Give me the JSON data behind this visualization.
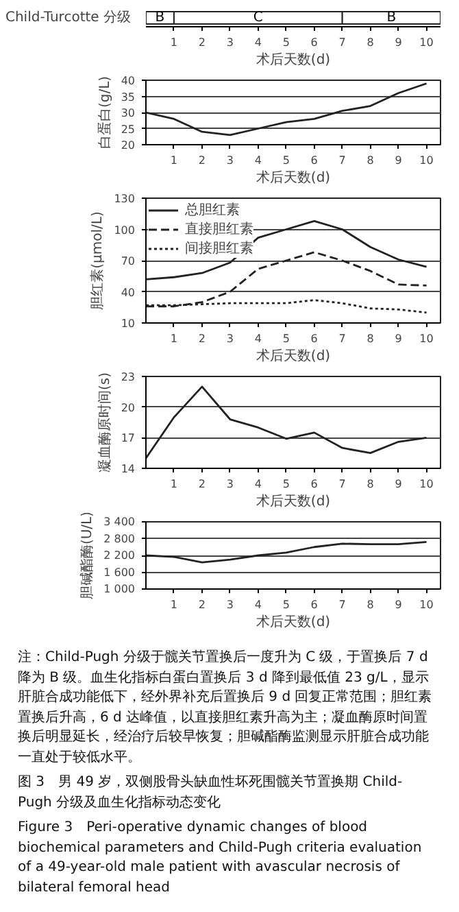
{
  "chart_data": [
    {
      "type": "bar",
      "orientation": "horizontal",
      "stacked": true,
      "categories": [
        "Child-Turcotte 分级"
      ],
      "xlabel": "术后天数(d)",
      "xlim": [
        0,
        10.5
      ],
      "xticks": [
        1,
        2,
        3,
        4,
        5,
        6,
        7,
        8,
        9,
        10
      ],
      "series": [
        {
          "name": "B",
          "color": "#ffffff",
          "values": [
            1
          ]
        },
        {
          "name": "C",
          "color": "#ffffff",
          "values": [
            6
          ]
        },
        {
          "name": "B",
          "color": "#ffffff",
          "values": [
            3.5
          ]
        }
      ]
    },
    {
      "type": "line",
      "ylabel": "白蛋白(g/L)",
      "xlabel": "术后天数(d)",
      "x": [
        0,
        1,
        2,
        3,
        4,
        5,
        6,
        7,
        8,
        9,
        10
      ],
      "xlim": [
        0,
        10.5
      ],
      "xticks": [
        1,
        2,
        3,
        4,
        5,
        6,
        7,
        8,
        9,
        10
      ],
      "ylim": [
        20,
        40
      ],
      "yticks": [
        20,
        25,
        30,
        35,
        40
      ],
      "grid": "y",
      "series": [
        {
          "color": "#222222",
          "line_style": "solid",
          "values": [
            30,
            28,
            24,
            23,
            25,
            27,
            28,
            30.5,
            32,
            36,
            39
          ]
        }
      ]
    },
    {
      "type": "line",
      "ylabel": "胆红素(μmol/L)",
      "xlabel": "术后天数(d)",
      "x": [
        0,
        1,
        2,
        3,
        4,
        5,
        6,
        7,
        8,
        9,
        10
      ],
      "xlim": [
        0,
        10.5
      ],
      "xticks": [
        1,
        2,
        3,
        4,
        5,
        6,
        7,
        8,
        9,
        10
      ],
      "ylim": [
        10,
        130
      ],
      "yticks": [
        10,
        40,
        70,
        100,
        130
      ],
      "grid": "y",
      "legend": "top left",
      "series": [
        {
          "name": "总胆红素",
          "color": "#222222",
          "line_style": "solid",
          "values": [
            52,
            54,
            58,
            68,
            92,
            100,
            108,
            100,
            83,
            71,
            64
          ]
        },
        {
          "name": "直接胆红素",
          "color": "#222222",
          "line_style": "dashed",
          "values": [
            26,
            26,
            30,
            40,
            62,
            70,
            78,
            70,
            60,
            47,
            46
          ]
        },
        {
          "name": "间接胆红素",
          "color": "#222222",
          "line_style": "dotted",
          "values": [
            27,
            27,
            28,
            29,
            29,
            29,
            32,
            29,
            24,
            23,
            20
          ]
        }
      ]
    },
    {
      "type": "line",
      "ylabel": "凝血酶原时间(s)",
      "xlabel": "术后天数(d)",
      "x": [
        0,
        1,
        2,
        3,
        4,
        5,
        6,
        7,
        8,
        9,
        10
      ],
      "xlim": [
        0,
        10.5
      ],
      "xticks": [
        1,
        2,
        3,
        4,
        5,
        6,
        7,
        8,
        9,
        10
      ],
      "ylim": [
        14,
        23
      ],
      "yticks": [
        14,
        17,
        20,
        23
      ],
      "grid": "y",
      "series": [
        {
          "color": "#222222",
          "line_style": "solid",
          "values": [
            15,
            19,
            22,
            18.8,
            18,
            16.9,
            17.5,
            16,
            15.5,
            16.6,
            17
          ]
        }
      ]
    },
    {
      "type": "line",
      "ylabel": "胆碱酯酶(U/L)",
      "xlabel": "术后天数(d)",
      "x": [
        0,
        1,
        2,
        3,
        4,
        5,
        6,
        7,
        8,
        9,
        10
      ],
      "xlim": [
        0,
        10.5
      ],
      "xticks": [
        1,
        2,
        3,
        4,
        5,
        6,
        7,
        8,
        9,
        10
      ],
      "ylim": [
        1000,
        3400
      ],
      "yticks": [
        {
          "value": 1000,
          "label": "1 000"
        },
        {
          "value": 1600,
          "label": "1 600"
        },
        {
          "value": 2200,
          "label": "2 200"
        },
        {
          "value": 2800,
          "label": "2 800"
        },
        {
          "value": 3400,
          "label": "3 400"
        }
      ],
      "grid": "y",
      "series": [
        {
          "color": "#222222",
          "line_style": "solid",
          "values": [
            2200,
            2150,
            1950,
            2050,
            2200,
            2300,
            2500,
            2620,
            2600,
            2600,
            2680
          ]
        }
      ]
    },
    {
      "type": "other",
      "annotations": [
        "注：Child-Pugh 分级于髋关节置换后一度升为 C 级，于置换后 7 d 降为 B 级。血生化指标白蛋白置换后 3 d 降到最低值 23 g/L，显示肝脏合成功能低下，经外界补充后置换后 9 d 回复正常范围；胆红素置换后升高，6 d 达峰值，以直接胆红素升高为主；凝血酶原时间置换后明显延长，经治疗后较早恢复；胆碱酯酶监测显示肝脏合成功能一直处于较低水平。",
        "图 3　男 49 岁，双侧股骨头缺血性坏死围髋关节置换期 Child-Pugh 分级及血生化指标动态变化",
        "Figure 3　Peri-operative dynamic changes of blood biochemical parameters and Child-Pugh criteria evaluation of a 49-year-old male patient with avascular necrosis of bilateral femoral head"
      ]
    }
  ]
}
